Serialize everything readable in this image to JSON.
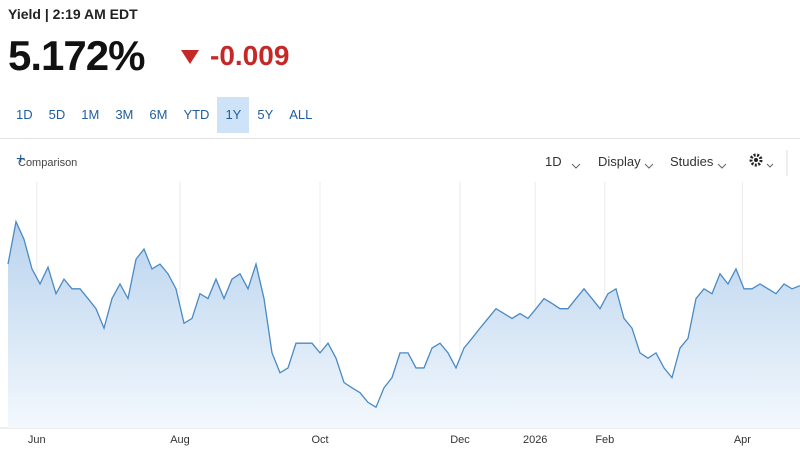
{
  "header": {
    "title": "Yield | 2:19 AM EDT",
    "price": "5.172%",
    "change": "-0.009"
  },
  "ranges": {
    "items": [
      "1D",
      "5D",
      "1M",
      "3M",
      "6M",
      "YTD",
      "1Y",
      "5Y",
      "ALL"
    ],
    "active_index": 6
  },
  "toolbar": {
    "comparison": "Comparison",
    "interval": "1D",
    "display": "Display",
    "studies": "Studies"
  },
  "chart_data": {
    "type": "area",
    "color": "#4a8ac4",
    "grid": true,
    "xlim": [
      0,
      99
    ],
    "ylim": [
      4.85,
      5.4
    ],
    "xticks": [
      {
        "value": 3.6,
        "label": "Jun"
      },
      {
        "value": 21.5,
        "label": "Aug"
      },
      {
        "value": 39,
        "label": "Oct"
      },
      {
        "value": 56.5,
        "label": "Dec"
      },
      {
        "value": 65.9,
        "label": "2026"
      },
      {
        "value": 74.6,
        "label": "Feb"
      },
      {
        "value": 91.8,
        "label": "Apr"
      }
    ],
    "series": [
      {
        "name": "Yield",
        "values": [
          5.221,
          5.317,
          5.277,
          5.21,
          5.176,
          5.214,
          5.154,
          5.187,
          5.165,
          5.165,
          5.143,
          5.12,
          5.076,
          5.143,
          5.176,
          5.143,
          5.232,
          5.255,
          5.21,
          5.221,
          5.199,
          5.165,
          5.087,
          5.098,
          5.154,
          5.143,
          5.187,
          5.143,
          5.187,
          5.199,
          5.165,
          5.221,
          5.143,
          5.02,
          4.975,
          4.986,
          5.042,
          5.042,
          5.042,
          5.02,
          5.042,
          5.008,
          4.953,
          4.941,
          4.93,
          4.908,
          4.897,
          4.941,
          4.964,
          5.02,
          5.02,
          4.986,
          4.986,
          5.031,
          5.042,
          5.02,
          4.986,
          5.031,
          5.053,
          5.076,
          5.098,
          5.12,
          5.109,
          5.098,
          5.109,
          5.098,
          5.12,
          5.143,
          5.132,
          5.12,
          5.12,
          5.143,
          5.165,
          5.143,
          5.12,
          5.154,
          5.165,
          5.098,
          5.076,
          5.02,
          5.008,
          5.02,
          4.986,
          4.964,
          5.031,
          5.053,
          5.143,
          5.165,
          5.154,
          5.199,
          5.176,
          5.21,
          5.165,
          5.165,
          5.176,
          5.165,
          5.154,
          5.176,
          5.165,
          5.172
        ]
      }
    ]
  }
}
